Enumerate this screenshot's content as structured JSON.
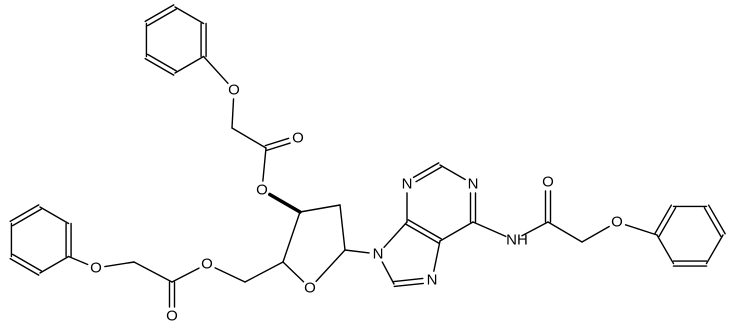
{
  "atoms": [
    "O",
    "O",
    "O",
    "O",
    "O",
    "O",
    "O",
    "N",
    "N",
    "N",
    "N",
    "NH",
    "O",
    "O"
  ]
}
